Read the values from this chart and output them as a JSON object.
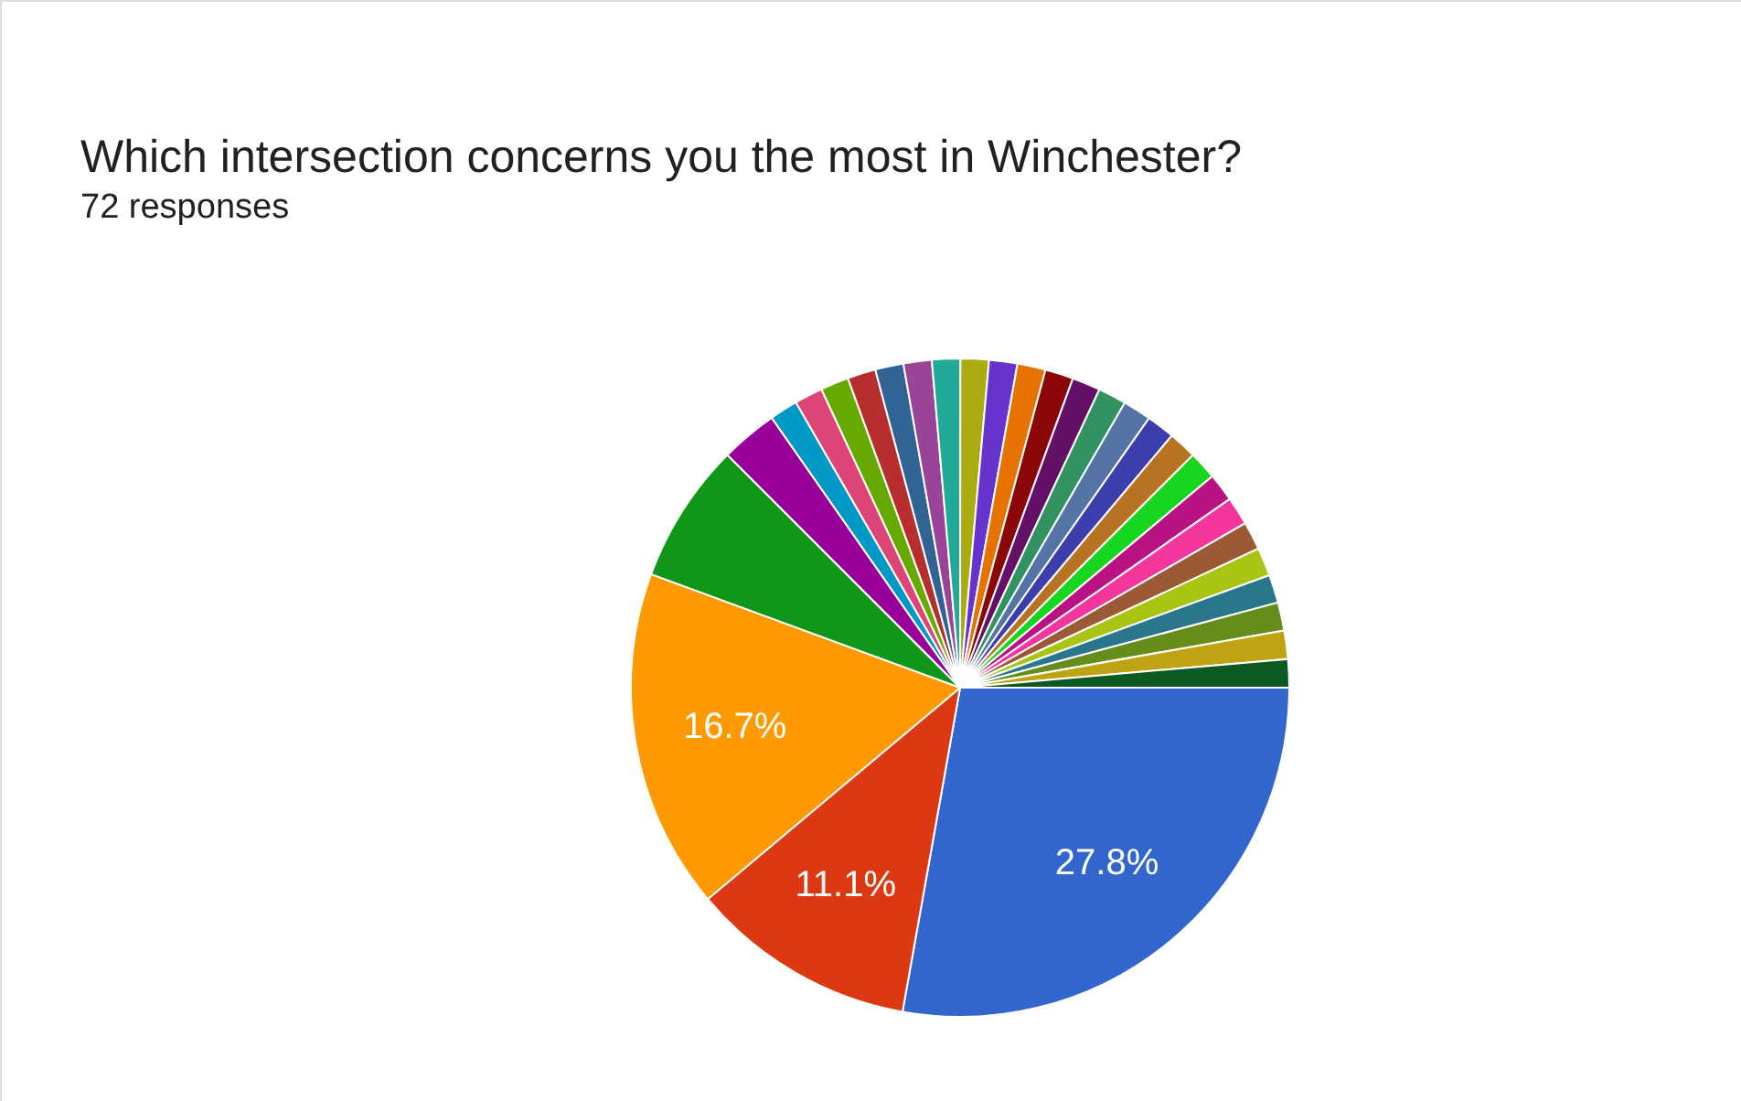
{
  "chart_data": {
    "type": "pie",
    "title": "Which intersection concerns you the most in Winchester?",
    "subtitle": "72 responses",
    "categories": [
      null,
      null,
      null,
      null,
      null,
      null,
      null,
      null,
      null,
      null,
      null,
      null,
      null,
      null,
      null,
      null,
      null,
      null,
      null,
      null,
      null,
      null,
      null,
      null,
      null,
      null,
      null,
      null,
      null,
      null
    ],
    "values": [
      27.8,
      11.1,
      16.7,
      6.9,
      2.8,
      1.388,
      1.388,
      1.388,
      1.388,
      1.388,
      1.388,
      1.388,
      1.388,
      1.388,
      1.388,
      1.388,
      1.388,
      1.388,
      1.388,
      1.388,
      1.388,
      1.388,
      1.388,
      1.388,
      1.388,
      1.388,
      1.388,
      1.388,
      1.388,
      1.388
    ],
    "colors": [
      "#3366cc",
      "#dc3912",
      "#ff9900",
      "#109618",
      "#990099",
      "#0099c6",
      "#dd4477",
      "#66aa00",
      "#b82e2e",
      "#316395",
      "#994499",
      "#22aa99",
      "#aaaa11",
      "#6633cc",
      "#e67300",
      "#8b0707",
      "#651067",
      "#329262",
      "#5574a6",
      "#3b3eac",
      "#b77322",
      "#16d620",
      "#b91383",
      "#f4359e",
      "#9c5935",
      "#a9c413",
      "#2a778d",
      "#668d1c",
      "#bea413",
      "#0c5922"
    ],
    "value_labels": [
      "27.8%",
      "11.1%",
      "16.7%",
      null,
      null,
      null,
      null,
      null,
      null,
      null,
      null,
      null,
      null,
      null,
      null,
      null,
      null,
      null,
      null,
      null,
      null,
      null,
      null,
      null,
      null,
      null,
      null,
      null,
      null,
      null
    ]
  }
}
